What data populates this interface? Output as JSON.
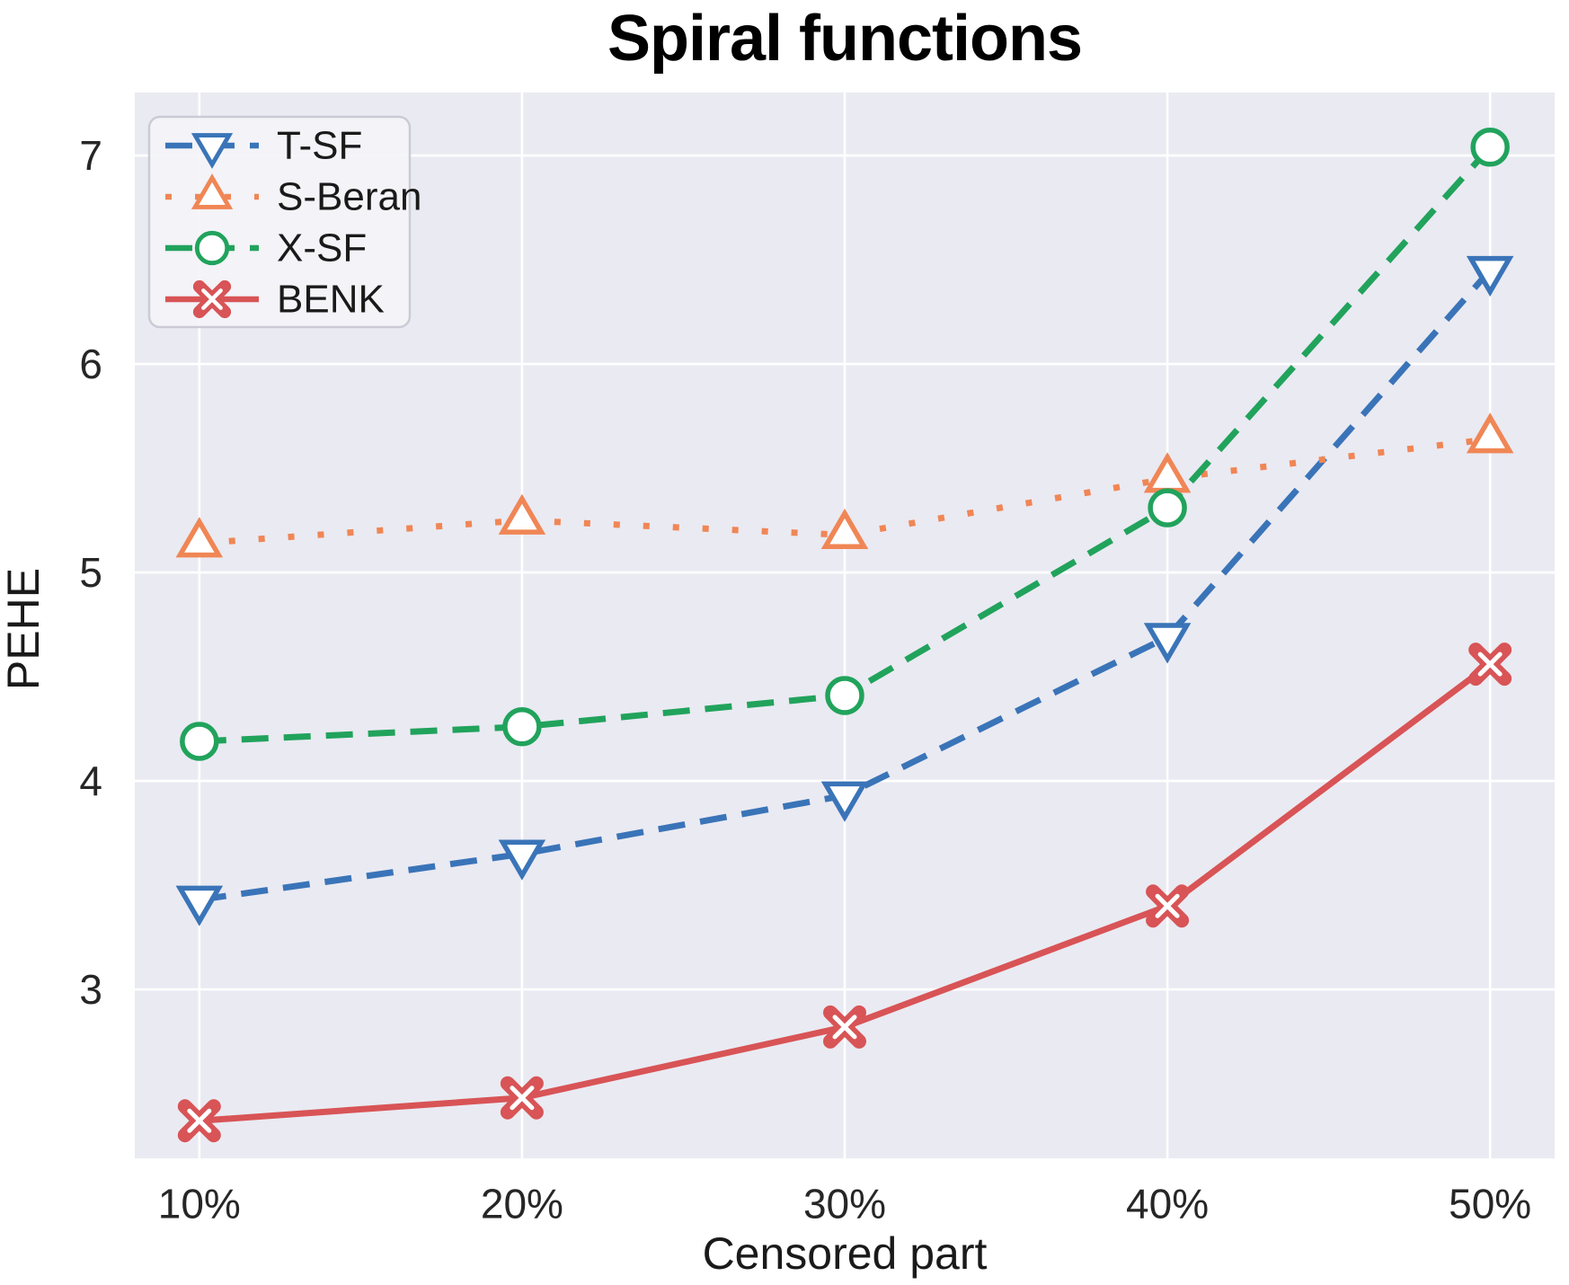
{
  "chart_data": {
    "type": "line",
    "title": "Spiral functions",
    "xlabel": "Censored part",
    "ylabel": "PEHE",
    "x": [
      10,
      20,
      30,
      40,
      50
    ],
    "x_tick_labels": [
      "10%",
      "20%",
      "30%",
      "40%",
      "50%"
    ],
    "y_ticks": [
      3,
      4,
      5,
      6,
      7
    ],
    "y_tick_labels": [
      "3",
      "4",
      "5",
      "6",
      "7"
    ],
    "xlim": [
      8,
      52
    ],
    "ylim": [
      2.19,
      7.302
    ],
    "grid": "on",
    "legend_position": "upper left",
    "plot_background_color": "#EAEAF2",
    "grid_color": "#FFFFFF",
    "tick_label_color": "#262626",
    "series": [
      {
        "name": "T-SF",
        "values": [
          3.43,
          3.65,
          3.93,
          4.69,
          6.45
        ],
        "color": "#3A74B8",
        "line_style": "dashed",
        "marker": "triangle-down"
      },
      {
        "name": "S-Beran",
        "values": [
          5.14,
          5.25,
          5.18,
          5.45,
          5.64
        ],
        "color": "#F08655",
        "line_style": "dotted",
        "marker": "triangle-up"
      },
      {
        "name": "X-SF",
        "values": [
          4.19,
          4.26,
          4.41,
          5.31,
          7.04
        ],
        "color": "#21A35C",
        "line_style": "dashed",
        "marker": "circle"
      },
      {
        "name": "BENK",
        "values": [
          2.37,
          2.48,
          2.82,
          3.4,
          4.56
        ],
        "color": "#D85456",
        "line_style": "solid",
        "marker": "x-filled"
      }
    ]
  }
}
